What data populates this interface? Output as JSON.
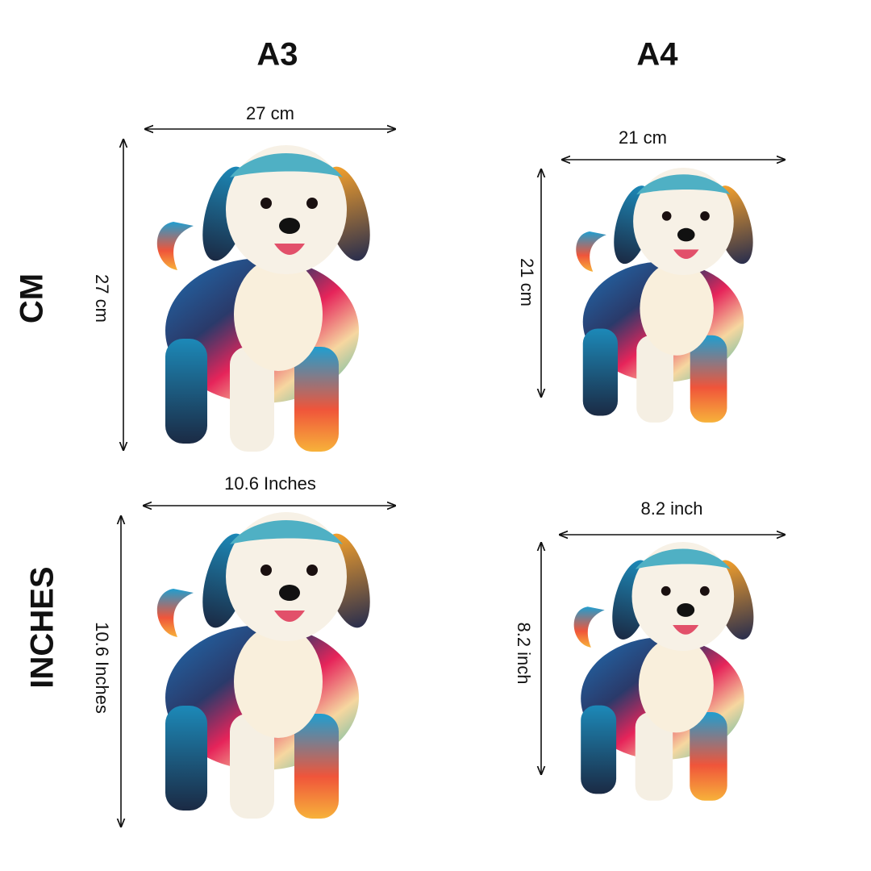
{
  "columns": [
    {
      "title": "A3"
    },
    {
      "title": "A4"
    }
  ],
  "rows": [
    {
      "title": "CM"
    },
    {
      "title": "INCHES"
    }
  ],
  "panels": [
    {
      "width_label": "27 cm",
      "height_label": "27 cm"
    },
    {
      "width_label": "21 cm",
      "height_label": "21 cm"
    },
    {
      "width_label": "10.6  Inches",
      "height_label": "10.6 Inches"
    },
    {
      "width_label": "8.2 inch",
      "height_label": "8.2 inch"
    }
  ]
}
